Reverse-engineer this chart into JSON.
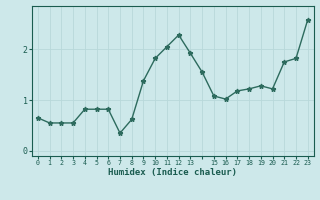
{
  "x_full": [
    0,
    1,
    2,
    3,
    4,
    5,
    6,
    7,
    8,
    9,
    10,
    11,
    12,
    13,
    14,
    15,
    16,
    17,
    18,
    19,
    20,
    21,
    22,
    23
  ],
  "y_full": [
    0.65,
    0.55,
    0.55,
    0.55,
    0.82,
    0.82,
    0.82,
    0.35,
    0.62,
    1.38,
    1.82,
    2.05,
    2.28,
    1.92,
    1.55,
    1.08,
    1.02,
    1.18,
    1.22,
    1.28,
    1.22,
    1.75,
    1.82,
    2.58
  ],
  "xlabel": "Humidex (Indice chaleur)",
  "line_color": "#2d6b5e",
  "marker": "*",
  "bg_color": "#cde8ea",
  "grid_color": "#b8d8da",
  "tick_color": "#1a5c50",
  "xlim": [
    -0.5,
    23.5
  ],
  "ylim": [
    -0.1,
    2.85
  ],
  "yticks": [
    0,
    1,
    2
  ],
  "xtick_labels": [
    "0",
    "1",
    "2",
    "3",
    "4",
    "5",
    "6",
    "7",
    "8",
    "9",
    "10",
    "11",
    "12",
    "13",
    "",
    "15",
    "16",
    "17",
    "18",
    "19",
    "20",
    "21",
    "22",
    "23"
  ],
  "linewidth": 1.0,
  "markersize": 3.5
}
